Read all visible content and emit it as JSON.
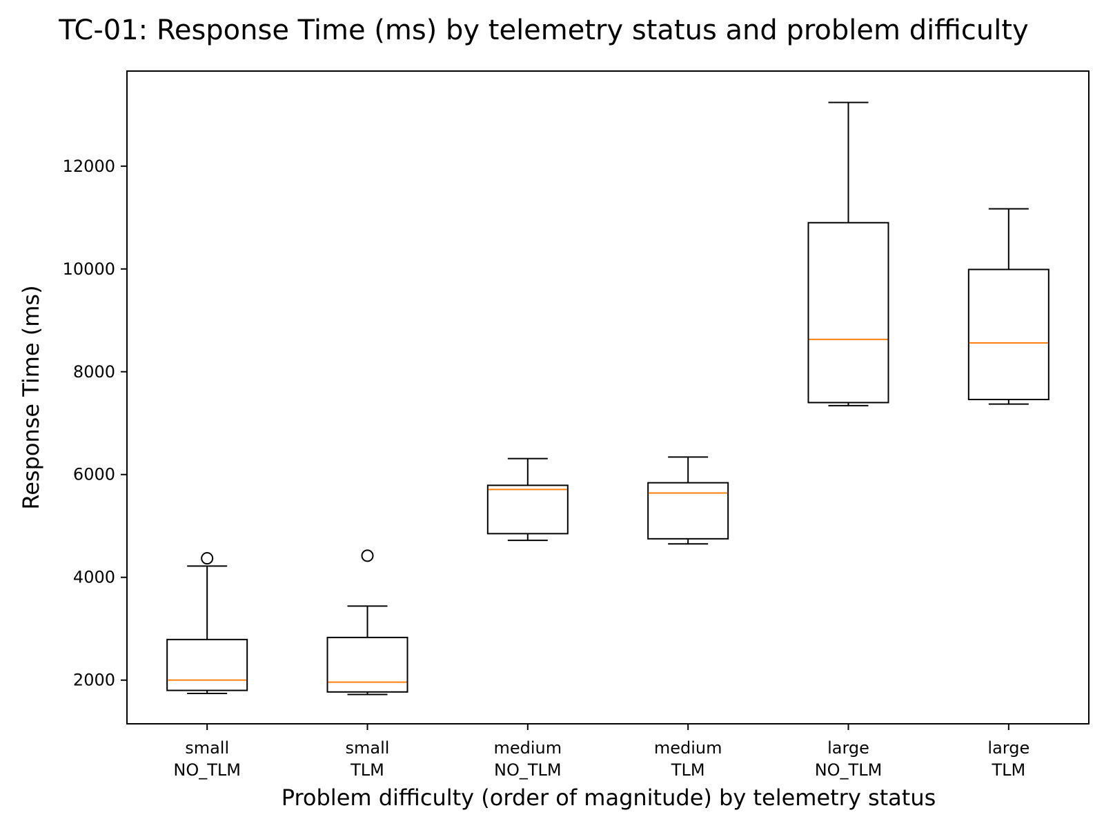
{
  "chart_data": {
    "type": "box",
    "title": "TC-01: Response Time (ms) by telemetry status and problem difficulty",
    "xlabel": "Problem difficulty (order of magnitude) by telemetry status",
    "ylabel": "Response Time (ms)",
    "ylim": [
      1150,
      13850
    ],
    "yticks": [
      2000,
      4000,
      6000,
      8000,
      10000,
      12000
    ],
    "ytick_labels": [
      "2000",
      "4000",
      "6000",
      "8000",
      "10000",
      "12000"
    ],
    "grid": false,
    "categories": [
      [
        "small",
        "NO_TLM"
      ],
      [
        "small",
        "TLM"
      ],
      [
        "medium",
        "NO_TLM"
      ],
      [
        "medium",
        "TLM"
      ],
      [
        "large",
        "NO_TLM"
      ],
      [
        "large",
        "TLM"
      ]
    ],
    "boxes": [
      {
        "whisker_low": 1740,
        "q1": 1800,
        "median": 2000,
        "q3": 2790,
        "whisker_high": 4220,
        "outliers": [
          4370
        ]
      },
      {
        "whisker_low": 1720,
        "q1": 1770,
        "median": 1960,
        "q3": 2830,
        "whisker_high": 3440,
        "outliers": [
          4420
        ]
      },
      {
        "whisker_low": 4720,
        "q1": 4850,
        "median": 5710,
        "q3": 5790,
        "whisker_high": 6310,
        "outliers": []
      },
      {
        "whisker_low": 4650,
        "q1": 4750,
        "median": 5640,
        "q3": 5840,
        "whisker_high": 6340,
        "outliers": []
      },
      {
        "whisker_low": 7340,
        "q1": 7400,
        "median": 8630,
        "q3": 10900,
        "whisker_high": 13240,
        "outliers": []
      },
      {
        "whisker_low": 7370,
        "q1": 7460,
        "median": 8560,
        "q3": 9990,
        "whisker_high": 11170,
        "outliers": []
      }
    ],
    "colors": {
      "box": "#000000",
      "median": "#ff7f0e",
      "frame": "#000000"
    }
  }
}
